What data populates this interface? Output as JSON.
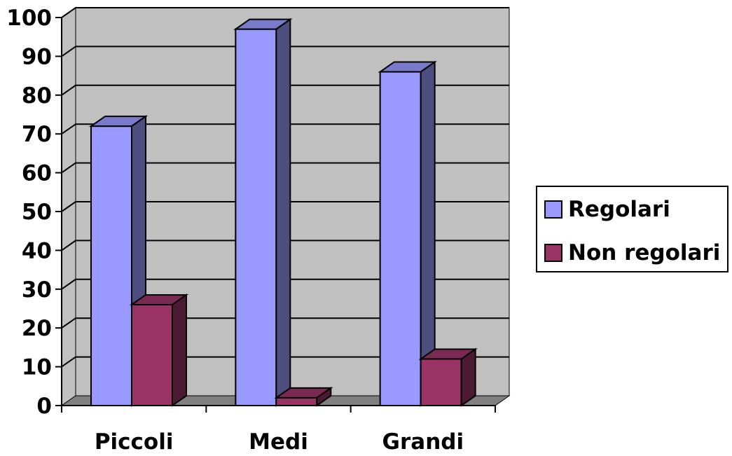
{
  "chart_data": {
    "type": "bar",
    "categories": [
      "Piccoli",
      "Medi",
      "Grandi"
    ],
    "series": [
      {
        "name": "Regolari",
        "values": [
          72,
          97,
          86
        ],
        "color": "#9999ff"
      },
      {
        "name": "Non regolari",
        "values": [
          26,
          2,
          12
        ],
        "color": "#993366"
      }
    ],
    "title": "",
    "xlabel": "",
    "ylabel": "",
    "ylim": [
      0,
      100
    ],
    "yticks": [
      "0",
      "10",
      "20",
      "30",
      "40",
      "50",
      "60",
      "70",
      "80",
      "90",
      "100"
    ],
    "grid": true,
    "legend_position": "right",
    "style": "3d-column",
    "wall_color": "#c0c0c0",
    "floor_color": "#808080"
  }
}
